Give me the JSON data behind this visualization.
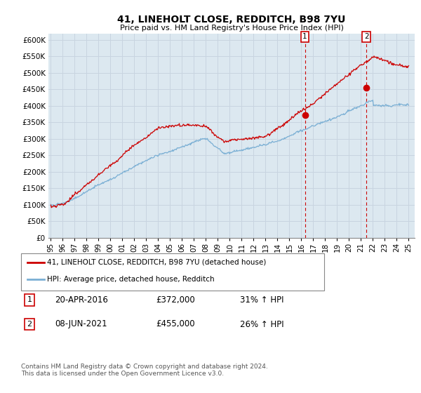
{
  "title": "41, LINEHOLT CLOSE, REDDITCH, B98 7YU",
  "subtitle": "Price paid vs. HM Land Registry's House Price Index (HPI)",
  "yticks": [
    0,
    50000,
    100000,
    150000,
    200000,
    250000,
    300000,
    350000,
    400000,
    450000,
    500000,
    550000,
    600000
  ],
  "ylim": [
    0,
    620000
  ],
  "red_line_color": "#cc0000",
  "blue_line_color": "#7aafd4",
  "vline_color": "#cc0000",
  "grid_color": "#c8d4e0",
  "bg_color": "#ffffff",
  "plot_bg_color": "#dce8f0",
  "legend_label_red": "41, LINEHOLT CLOSE, REDDITCH, B98 7YU (detached house)",
  "legend_label_blue": "HPI: Average price, detached house, Redditch",
  "annotation1_num": "1",
  "annotation1_date": "20-APR-2016",
  "annotation1_price": "£372,000",
  "annotation1_hpi": "31% ↑ HPI",
  "annotation2_num": "2",
  "annotation2_date": "08-JUN-2021",
  "annotation2_price": "£455,000",
  "annotation2_hpi": "26% ↑ HPI",
  "footnote": "Contains HM Land Registry data © Crown copyright and database right 2024.\nThis data is licensed under the Open Government Licence v3.0.",
  "sale1_year": 2016.3,
  "sale1_price": 372000,
  "sale2_year": 2021.45,
  "sale2_price": 455000
}
